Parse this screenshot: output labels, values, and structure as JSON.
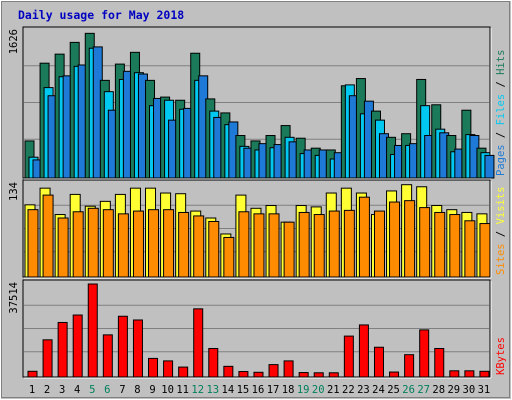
{
  "title": "Daily usage for May 2018",
  "colors": {
    "background": "#c0c0c0",
    "panel": "#c0c0c0",
    "title": "#0000c0",
    "hits": "#1a7a5a",
    "files": "#00c8f0",
    "pages": "#1e7ad6",
    "visits": "#ffff33",
    "sites": "#ff8c00",
    "kbytes": "#ff0000",
    "weekend_label": "#00805c",
    "weekday_label": "#000000"
  },
  "chart_data": [
    {
      "type": "bar",
      "panel": "hits-files-pages",
      "ylabel_max": "1626",
      "ylim": [
        0,
        1626
      ],
      "legend": [
        "Pages",
        "Files",
        "Hits"
      ],
      "categories": [
        "1",
        "2",
        "3",
        "4",
        "5",
        "6",
        "7",
        "8",
        "9",
        "10",
        "11",
        "12",
        "13",
        "14",
        "15",
        "16",
        "17",
        "18",
        "19",
        "20",
        "21",
        "22",
        "23",
        "24",
        "25",
        "26",
        "27",
        "28",
        "29",
        "30",
        "31"
      ],
      "series": [
        {
          "name": "Hits",
          "values": [
            410,
            1270,
            1370,
            1500,
            1600,
            1080,
            1260,
            1390,
            1080,
            895,
            860,
            1380,
            875,
            720,
            470,
            410,
            470,
            580,
            440,
            330,
            310,
            1020,
            1100,
            740,
            450,
            490,
            1090,
            810,
            470,
            750,
            330
          ]
        },
        {
          "name": "Files",
          "values": [
            230,
            1000,
            1120,
            1235,
            1435,
            955,
            1090,
            1165,
            800,
            860,
            760,
            1080,
            740,
            590,
            350,
            310,
            335,
            450,
            270,
            250,
            210,
            1030,
            710,
            640,
            260,
            360,
            800,
            540,
            290,
            480,
            280
          ]
        },
        {
          "name": "Pages",
          "values": [
            200,
            910,
            1130,
            1250,
            1450,
            750,
            1180,
            1150,
            880,
            640,
            770,
            1130,
            670,
            620,
            330,
            380,
            370,
            400,
            310,
            310,
            280,
            910,
            850,
            490,
            360,
            380,
            470,
            500,
            320,
            470,
            250
          ]
        }
      ]
    },
    {
      "type": "bar",
      "panel": "visits-sites",
      "ylabel_max": "134",
      "ylim": [
        0,
        134
      ],
      "legend": [
        "Sites",
        "Visits"
      ],
      "categories": [
        "1",
        "2",
        "3",
        "4",
        "5",
        "6",
        "7",
        "8",
        "9",
        "10",
        "11",
        "12",
        "13",
        "14",
        "15",
        "16",
        "17",
        "18",
        "19",
        "20",
        "21",
        "22",
        "23",
        "24",
        "25",
        "26",
        "27",
        "28",
        "29",
        "30",
        "31"
      ],
      "series": [
        {
          "name": "Visits",
          "values": [
            104,
            128,
            90,
            119,
            102,
            109,
            119,
            128,
            128,
            121,
            120,
            95,
            85,
            62,
            118,
            99,
            103,
            79,
            103,
            101,
            121,
            128,
            121,
            90,
            124,
            133,
            130,
            103,
            97,
            93,
            91
          ]
        },
        {
          "name": "Sites",
          "values": [
            97,
            118,
            85,
            94,
            99,
            97,
            91,
            95,
            97,
            97,
            93,
            88,
            80,
            57,
            94,
            91,
            91,
            79,
            93,
            90,
            95,
            96,
            115,
            95,
            108,
            110,
            100,
            93,
            90,
            81,
            77
          ]
        }
      ]
    },
    {
      "type": "bar",
      "panel": "kbytes",
      "ylabel_max": "37514",
      "ylim": [
        0,
        37514
      ],
      "legend": [
        "KBytes"
      ],
      "categories": [
        "1",
        "2",
        "3",
        "4",
        "5",
        "6",
        "7",
        "8",
        "9",
        "10",
        "11",
        "12",
        "13",
        "14",
        "15",
        "16",
        "17",
        "18",
        "19",
        "20",
        "21",
        "22",
        "23",
        "24",
        "25",
        "26",
        "27",
        "28",
        "29",
        "30",
        "31"
      ],
      "series": [
        {
          "name": "KBytes",
          "values": [
            2300,
            15000,
            22000,
            25000,
            37514,
            17000,
            24500,
            23000,
            7500,
            6500,
            4000,
            27500,
            11500,
            4300,
            2200,
            1900,
            5000,
            6500,
            1800,
            1700,
            1700,
            16500,
            21000,
            12000,
            2000,
            9000,
            19000,
            11500,
            2500,
            2500,
            2300
          ]
        }
      ],
      "weekend_days": [
        "5",
        "6",
        "12",
        "13",
        "19",
        "20",
        "26",
        "27"
      ]
    }
  ]
}
